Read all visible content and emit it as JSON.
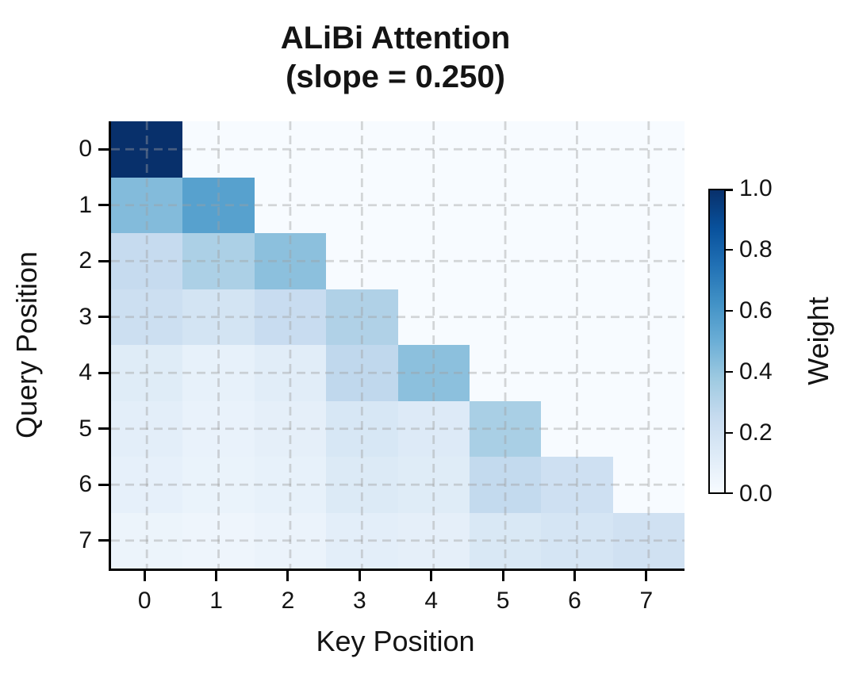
{
  "chart_data": {
    "type": "heatmap",
    "title": "ALiBi Attention",
    "subtitle": "(slope = 0.250)",
    "slope": 0.25,
    "xlabel": "Key Position",
    "ylabel": "Query Position",
    "x_tick_labels": [
      "0",
      "1",
      "2",
      "3",
      "4",
      "5",
      "6",
      "7"
    ],
    "y_tick_labels": [
      "0",
      "1",
      "2",
      "3",
      "4",
      "5",
      "6",
      "7"
    ],
    "colormap": "Blues",
    "colormap_anchors": [
      "#f7fbff",
      "#deebf7",
      "#c6dbef",
      "#9ecae1",
      "#6baed6",
      "#4292c6",
      "#2171b5",
      "#08519c",
      "#08306b"
    ],
    "masked_color": "#f7fbff",
    "grid": {
      "style": "dashed",
      "color": "#a0a0a0"
    },
    "values": [
      [
        1.0,
        null,
        null,
        null,
        null,
        null,
        null,
        null
      ],
      [
        0.44,
        0.56,
        null,
        null,
        null,
        null,
        null,
        null
      ],
      [
        0.25,
        0.33,
        0.42,
        null,
        null,
        null,
        null,
        null
      ],
      [
        0.22,
        0.18,
        0.24,
        0.32,
        null,
        null,
        null,
        null
      ],
      [
        0.12,
        0.08,
        0.11,
        0.27,
        0.42,
        null,
        null,
        null
      ],
      [
        0.1,
        0.07,
        0.09,
        0.16,
        0.13,
        0.34,
        null,
        null
      ],
      [
        0.085,
        0.065,
        0.08,
        0.135,
        0.12,
        0.26,
        0.21,
        null
      ],
      [
        0.055,
        0.045,
        0.06,
        0.1,
        0.09,
        0.15,
        0.17,
        0.2
      ]
    ],
    "colorbar": {
      "label": "Weight",
      "range": [
        0.0,
        1.0
      ],
      "ticks": [
        {
          "label": "1.0",
          "value": 1.0
        },
        {
          "label": "0.8",
          "value": 0.8
        },
        {
          "label": "0.6",
          "value": 0.6
        },
        {
          "label": "0.4",
          "value": 0.4
        },
        {
          "label": "0.2",
          "value": 0.2
        },
        {
          "label": "0.0",
          "value": 0.0
        }
      ]
    }
  }
}
